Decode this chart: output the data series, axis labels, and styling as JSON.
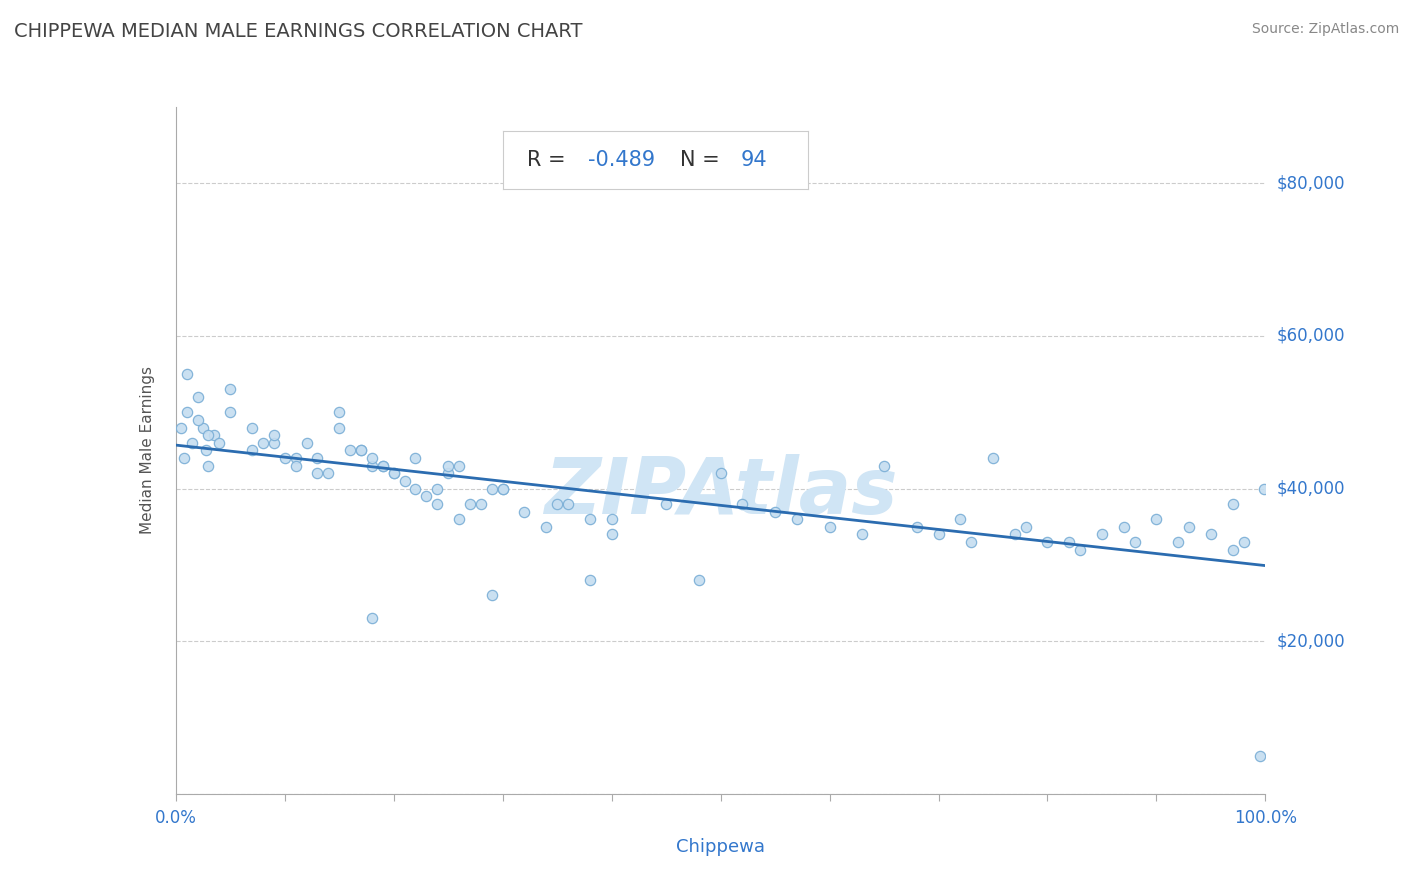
{
  "title": "CHIPPEWA MEDIAN MALE EARNINGS CORRELATION CHART",
  "source": "Source: ZipAtlas.com",
  "xlabel": "Chippewa",
  "ylabel": "Median Male Earnings",
  "R": -0.489,
  "N": 94,
  "xlim": [
    0,
    1.0
  ],
  "ylim": [
    0,
    90000
  ],
  "xtick_vals": [
    0.0,
    0.1,
    0.2,
    0.3,
    0.4,
    0.5,
    0.6,
    0.7,
    0.8,
    0.9,
    1.0
  ],
  "ytick_vals": [
    0,
    20000,
    40000,
    60000,
    80000
  ],
  "scatter_fill": "#c5ddf0",
  "scatter_edge": "#7aaed6",
  "trend_color": "#2b6cb0",
  "title_color": "#444444",
  "label_color": "#3377cc",
  "ylabel_color": "#555555",
  "watermark_color": "#d0e5f5",
  "grid_color": "#cccccc",
  "spine_color": "#aaaaaa",
  "background": "#ffffff",
  "dot_size": 55,
  "x_data": [
    0.005,
    0.008,
    0.01,
    0.015,
    0.02,
    0.025,
    0.028,
    0.03,
    0.035,
    0.04,
    0.01,
    0.02,
    0.03,
    0.05,
    0.07,
    0.09,
    0.11,
    0.13,
    0.05,
    0.07,
    0.09,
    0.11,
    0.13,
    0.15,
    0.17,
    0.19,
    0.08,
    0.1,
    0.12,
    0.14,
    0.16,
    0.18,
    0.2,
    0.22,
    0.24,
    0.26,
    0.15,
    0.17,
    0.19,
    0.21,
    0.23,
    0.25,
    0.27,
    0.29,
    0.18,
    0.2,
    0.22,
    0.24,
    0.26,
    0.28,
    0.3,
    0.32,
    0.34,
    0.36,
    0.38,
    0.4,
    0.25,
    0.3,
    0.35,
    0.4,
    0.45,
    0.5,
    0.55,
    0.6,
    0.65,
    0.7,
    0.75,
    0.8,
    0.85,
    0.9,
    0.52,
    0.57,
    0.63,
    0.68,
    0.73,
    0.78,
    0.83,
    0.88,
    0.93,
    0.97,
    0.72,
    0.77,
    0.82,
    0.87,
    0.92,
    0.95,
    0.97,
    0.98,
    0.995,
    0.999,
    0.29,
    0.18,
    0.38,
    0.48
  ],
  "y_data": [
    48000,
    44000,
    50000,
    46000,
    52000,
    48000,
    45000,
    43000,
    47000,
    46000,
    55000,
    49000,
    47000,
    50000,
    48000,
    46000,
    44000,
    42000,
    53000,
    45000,
    47000,
    43000,
    44000,
    50000,
    45000,
    43000,
    46000,
    44000,
    46000,
    42000,
    45000,
    43000,
    42000,
    44000,
    40000,
    43000,
    48000,
    45000,
    43000,
    41000,
    39000,
    42000,
    38000,
    40000,
    44000,
    42000,
    40000,
    38000,
    36000,
    38000,
    40000,
    37000,
    35000,
    38000,
    36000,
    34000,
    43000,
    40000,
    38000,
    36000,
    38000,
    42000,
    37000,
    35000,
    43000,
    34000,
    44000,
    33000,
    34000,
    36000,
    38000,
    36000,
    34000,
    35000,
    33000,
    35000,
    32000,
    33000,
    35000,
    38000,
    36000,
    34000,
    33000,
    35000,
    33000,
    34000,
    32000,
    33000,
    5000,
    40000,
    26000,
    23000,
    28000,
    28000
  ]
}
